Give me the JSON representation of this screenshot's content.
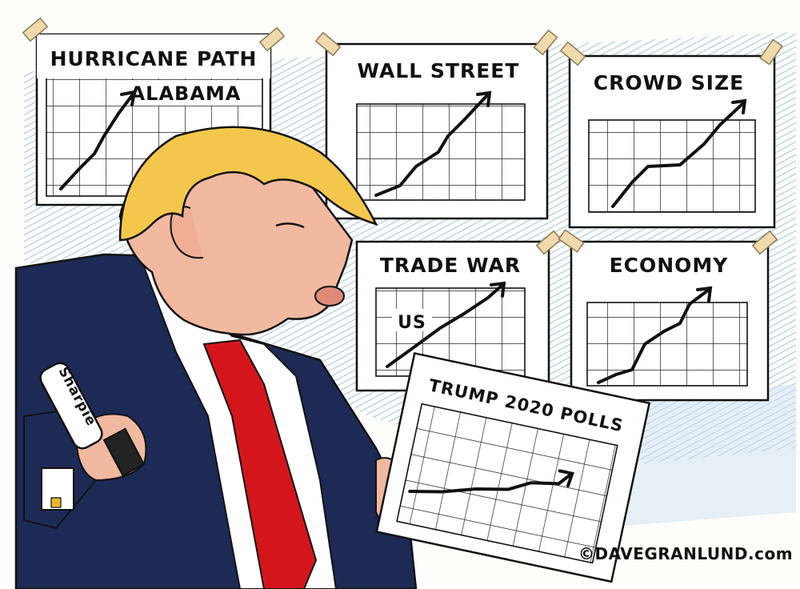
{
  "cartoon": {
    "signs": [
      {
        "title": "HURRICANE PATH",
        "annotation": "ALABAMA"
      },
      {
        "title": "WALL STREET"
      },
      {
        "title": "CROWD SIZE"
      },
      {
        "title": "TRADE WAR",
        "annotation": "US"
      },
      {
        "title": "ECONOMY"
      }
    ],
    "held_chart_title": "TRUMP 2020 POLLS",
    "marker_brand": "Sharpie",
    "credit": "©DAVEGRANLUND.com"
  },
  "colors": {
    "wall_hatch": "#8fb7d6",
    "hair": "#f3c74b",
    "skin": "#f2b9a1",
    "suit": "#1c2a55",
    "tie": "#d4161c",
    "tape": "#f0d9ac",
    "paper": "#ffffff",
    "ink": "#111111"
  }
}
